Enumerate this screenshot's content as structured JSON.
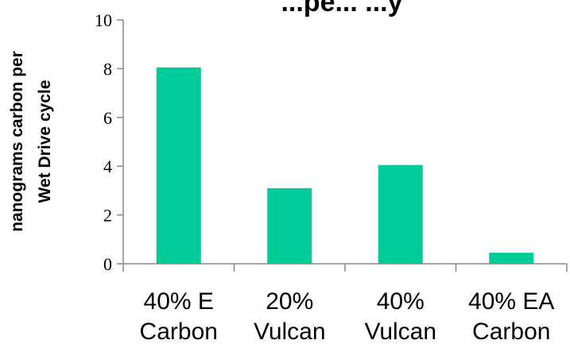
{
  "chart_data": {
    "type": "bar",
    "title": "...pe... ...y",
    "categories": [
      [
        "40% E",
        "Carbon"
      ],
      [
        "20%",
        "Vulcan"
      ],
      [
        "40%",
        "Vulcan"
      ],
      [
        "40% EA",
        "Carbon"
      ]
    ],
    "values": [
      8.05,
      3.1,
      4.05,
      0.45
    ],
    "ylabel": [
      "nanograms carbon per",
      "Wet Drive cycle"
    ],
    "ylim": [
      0,
      10
    ],
    "yticks": [
      0,
      2,
      4,
      6,
      8,
      10
    ],
    "grid": false,
    "legend": "none",
    "bar_color": "#00CC99",
    "axis_color": "#888888"
  }
}
